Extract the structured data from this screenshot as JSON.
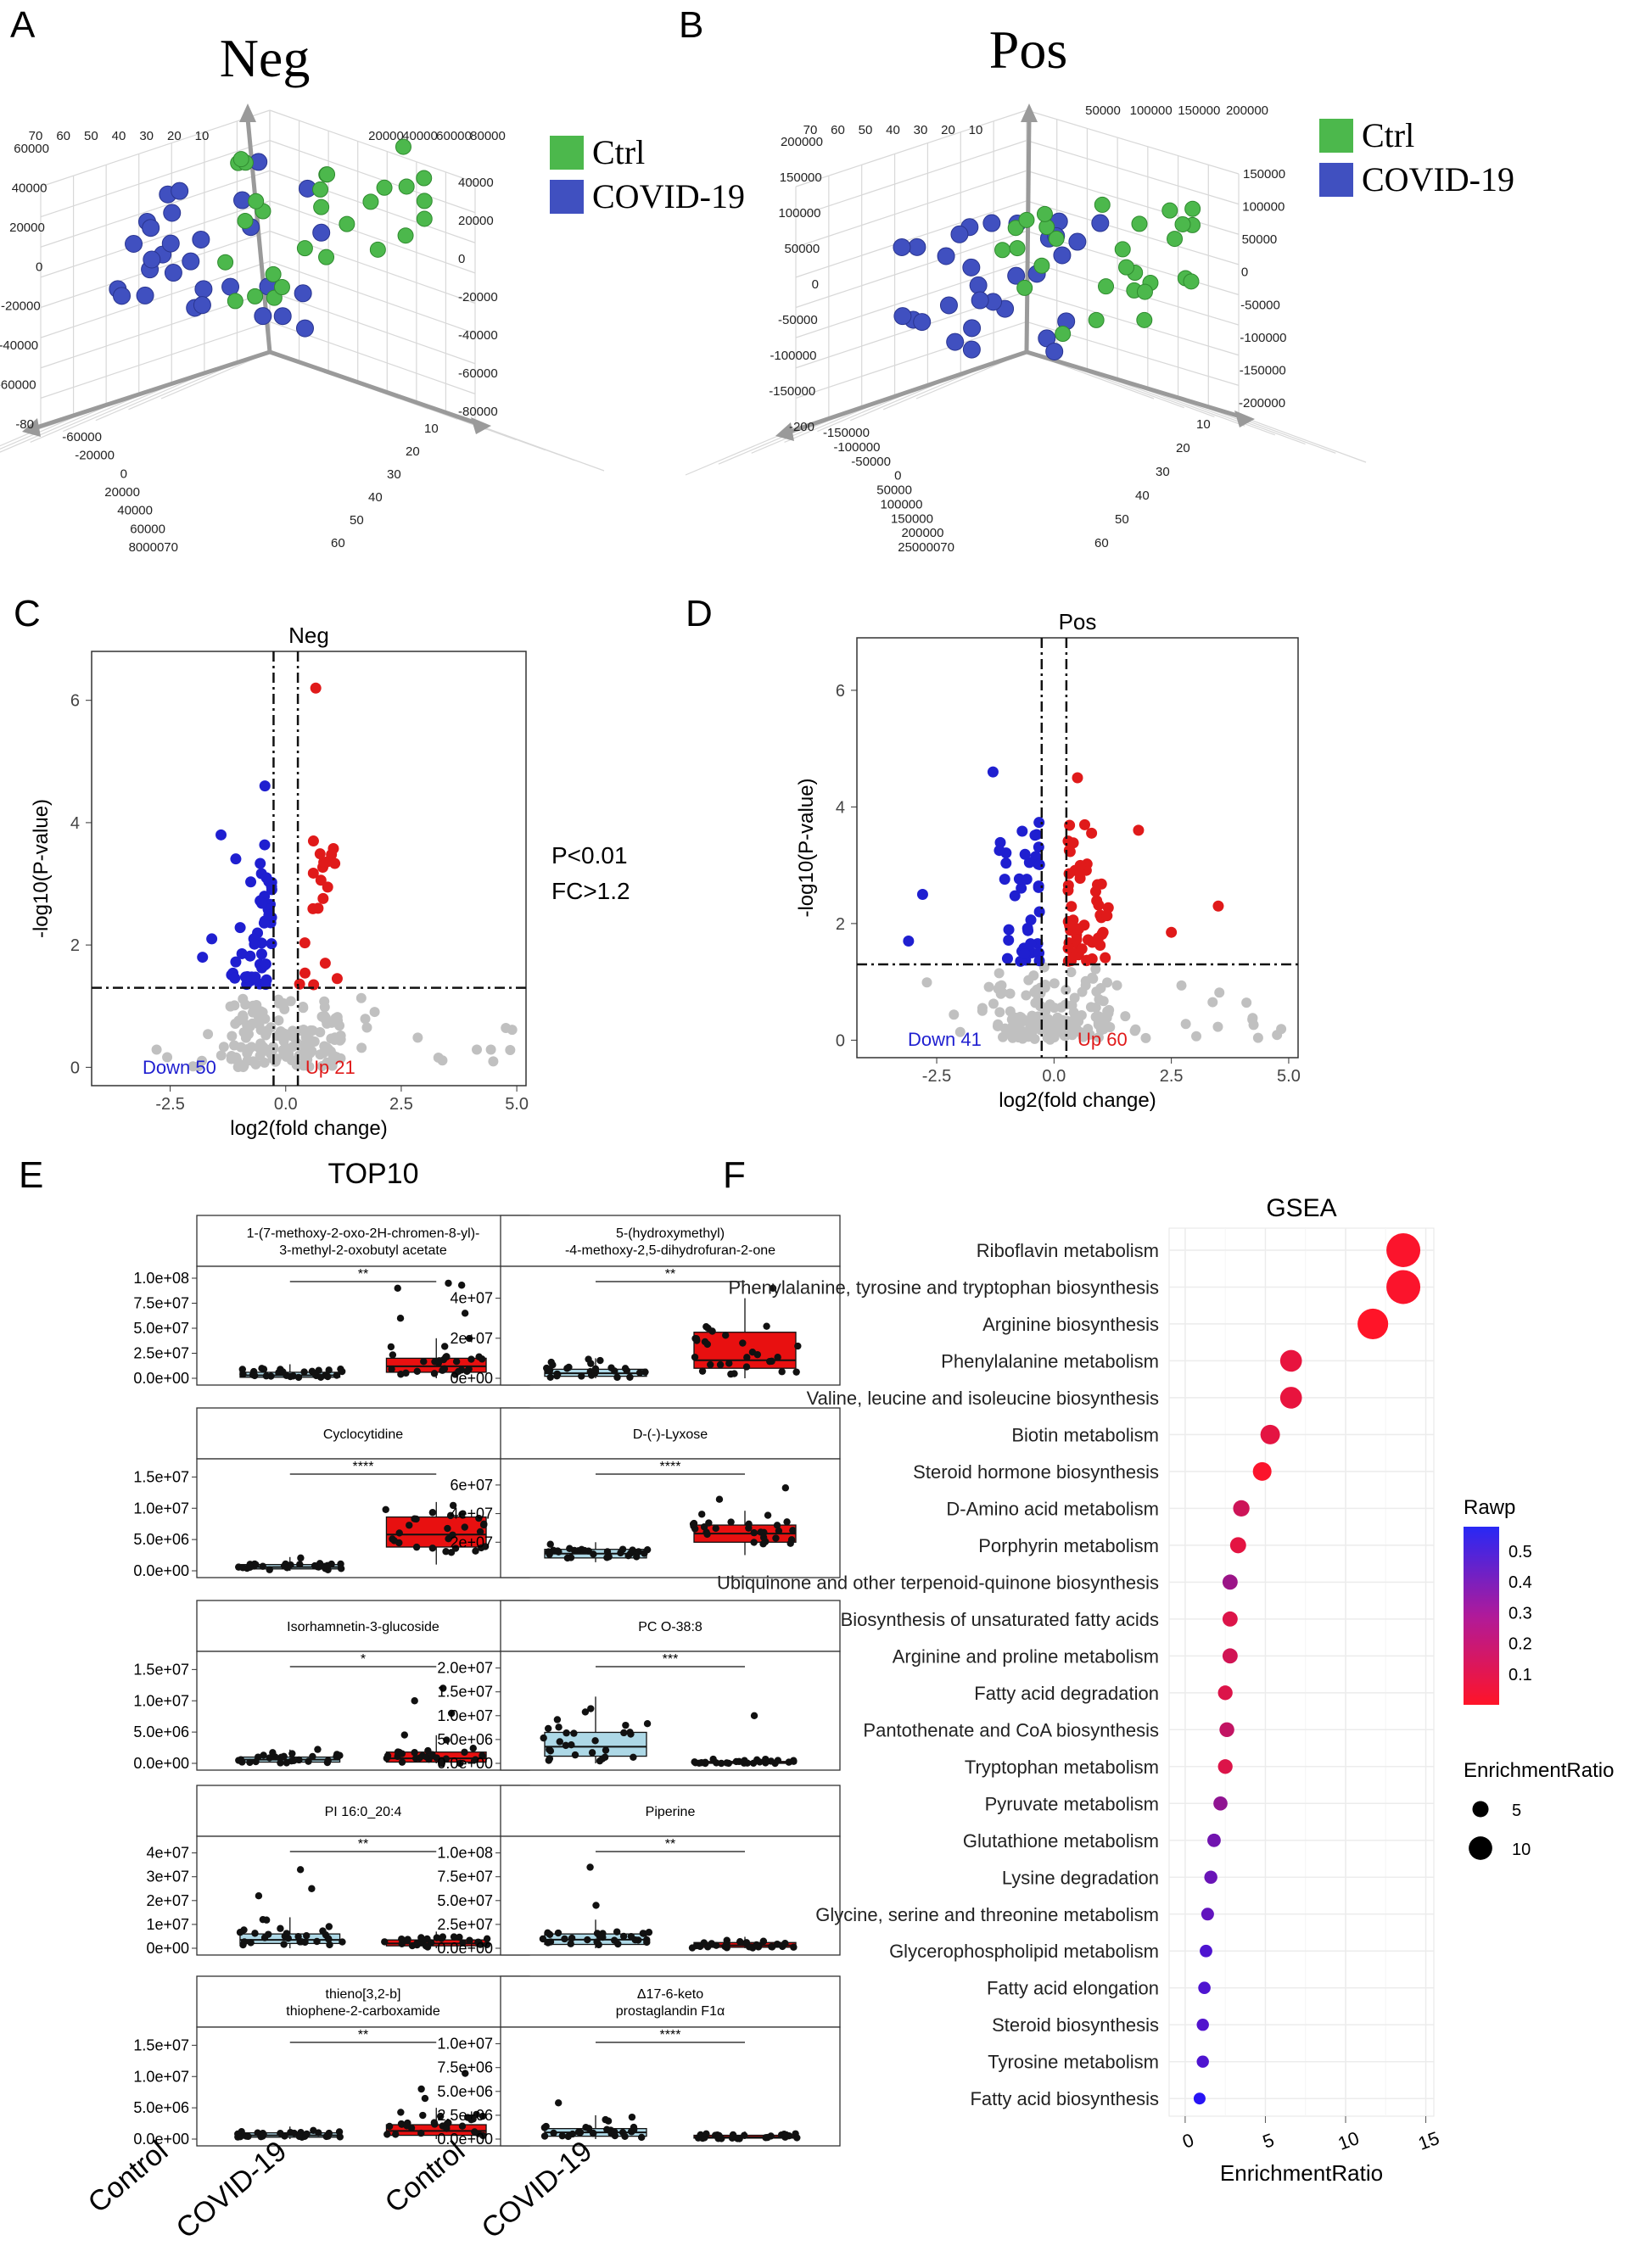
{
  "panel_letters": [
    "A",
    "B",
    "C",
    "D",
    "E",
    "F"
  ],
  "chart_data": [
    {
      "id": "A",
      "type": "scatter",
      "subtype": "3d-pca",
      "title": "Neg",
      "legend": [
        {
          "label": "Ctrl",
          "color": "#4cb84c"
        },
        {
          "label": "COVID-19",
          "color": "#4050c0"
        }
      ],
      "axis_ticks": {
        "top_left": [
          "70",
          "60",
          "50",
          "40",
          "30",
          "20",
          "10"
        ],
        "top_right": [
          "20000",
          "40000",
          "60000",
          "80000"
        ],
        "left": [
          "60000",
          "40000",
          "20000",
          "0",
          "-20000",
          "-40000",
          "-60000",
          "-80"
        ],
        "right": [
          "40000",
          "20000",
          "0",
          "-20000",
          "-40000",
          "-60000",
          "-80000"
        ],
        "bottom_left": [
          "-60000",
          "-20000",
          "0",
          "20000",
          "40000",
          "60000",
          "8000070"
        ],
        "bottom_right": [
          "10",
          "20",
          "30",
          "40",
          "50",
          "60"
        ]
      }
    },
    {
      "id": "B",
      "type": "scatter",
      "subtype": "3d-pca",
      "title": "Pos",
      "legend": [
        {
          "label": "Ctrl",
          "color": "#4cb84c"
        },
        {
          "label": "COVID-19",
          "color": "#4050c0"
        }
      ],
      "axis_ticks": {
        "top_left": [
          "70",
          "60",
          "50",
          "40",
          "30",
          "20",
          "10"
        ],
        "top_right": [
          "50000",
          "100000",
          "150000",
          "200000"
        ],
        "left": [
          "200000",
          "150000",
          "100000",
          "50000",
          "0",
          "-50000",
          "-100000",
          "-150000",
          "-200"
        ],
        "right": [
          "150000",
          "100000",
          "50000",
          "0",
          "-50000",
          "-100000",
          "-150000",
          "-200000"
        ],
        "bottom_left": [
          "-150000",
          "-100000",
          "-50000",
          "0",
          "50000",
          "100000",
          "150000",
          "200000",
          "25000070"
        ],
        "bottom_right": [
          "10",
          "20",
          "30",
          "40",
          "50",
          "60"
        ]
      }
    },
    {
      "id": "C",
      "type": "scatter",
      "subtype": "volcano",
      "title": "Neg",
      "xlabel": "log2(fold change)",
      "ylabel": "-log10(P-value)",
      "xlim": [
        -4.2,
        5.2
      ],
      "ylim": [
        -0.3,
        6.8
      ],
      "xticks": [
        "-2.5",
        "0.0",
        "2.5",
        "5.0"
      ],
      "yticks": [
        "0",
        "2",
        "4",
        "6"
      ],
      "thresholds": {
        "x": [
          -0.263,
          0.263
        ],
        "y": 1.3
      },
      "label_down": "Down 50",
      "label_up": "Up 21",
      "annotation": [
        "P<0.01",
        "FC>1.2"
      ],
      "down_count": 50,
      "up_count": 21,
      "seed": 7,
      "up_extremes": [
        [
          0.65,
          6.2
        ],
        [
          0.6,
          3.7
        ],
        [
          0.7,
          2.6
        ]
      ],
      "down_extremes": [
        [
          -0.45,
          4.6
        ],
        [
          -1.4,
          3.8
        ],
        [
          -1.6,
          2.1
        ],
        [
          -1.8,
          1.8
        ]
      ]
    },
    {
      "id": "D",
      "type": "scatter",
      "subtype": "volcano",
      "title": "Pos",
      "xlabel": "log2(fold change)",
      "ylabel": "-log10(P-value)",
      "xlim": [
        -4.2,
        5.2
      ],
      "ylim": [
        -0.3,
        6.9
      ],
      "xticks": [
        "-2.5",
        "0.0",
        "2.5",
        "5.0"
      ],
      "yticks": [
        "0",
        "2",
        "4",
        "6"
      ],
      "thresholds": {
        "x": [
          -0.263,
          0.263
        ],
        "y": 1.3
      },
      "label_down": "Down 41",
      "label_up": "Up 60",
      "down_count": 41,
      "up_count": 60,
      "seed": 19,
      "up_extremes": [
        [
          3.5,
          2.3
        ],
        [
          2.5,
          1.85
        ],
        [
          1.8,
          3.6
        ],
        [
          0.5,
          4.5
        ]
      ],
      "down_extremes": [
        [
          -1.3,
          4.6
        ],
        [
          -2.8,
          2.5
        ],
        [
          -3.1,
          1.7
        ]
      ]
    },
    {
      "id": "E",
      "type": "boxplot",
      "title": "TOP10",
      "groups": [
        "Control",
        "COVID-19"
      ],
      "panels": [
        {
          "name": "1-(7-methoxy-2-oxo-2H-chromen-8-yl)-\n3-methyl-2-oxobutyl acetate",
          "sig": "**",
          "yticks": [
            "1.0e+08",
            "7.5e+07",
            "5.0e+07",
            "2.5e+07",
            "0.0e+00"
          ],
          "ymax": 100000000.0,
          "control": {
            "q1": 1000000.0,
            "med": 3000000.0,
            "q3": 6000000.0,
            "lo": 0,
            "hi": 14000000.0
          },
          "covid": {
            "q1": 6000000.0,
            "med": 12000000.0,
            "q3": 20000000.0,
            "lo": 0,
            "hi": 40000000.0,
            "out": [
              95000000.0,
              93000000.0,
              90000000.0,
              65000000.0,
              60000000.0
            ]
          },
          "up": true
        },
        {
          "name": "5-(hydroxymethyl)\n-4-methoxy-2,5-dihydrofuran-2-one",
          "sig": "**",
          "yticks": [
            "4e+07",
            "2e+07",
            "0e+00"
          ],
          "ymax": 50000000.0,
          "control": {
            "q1": 1000000.0,
            "med": 2500000.0,
            "q3": 4500000.0,
            "lo": 0,
            "hi": 10000000.0
          },
          "covid": {
            "q1": 5000000.0,
            "med": 9000000.0,
            "q3": 23000000.0,
            "lo": 0,
            "hi": 40000000.0,
            "out": [
              45000000.0
            ]
          },
          "up": true
        },
        {
          "name": "Cyclocytidine",
          "sig": "****",
          "yticks": [
            "1.5e+07",
            "1.0e+07",
            "5.0e+06",
            "0.0e+00"
          ],
          "ymax": 16000000.0,
          "control": {
            "q1": 300000.0,
            "med": 600000.0,
            "q3": 1000000.0,
            "lo": 0,
            "hi": 2200000.0
          },
          "covid": {
            "q1": 3800000.0,
            "med": 5800000.0,
            "q3": 8600000.0,
            "lo": 1000000.0,
            "hi": 11000000.0,
            "out": []
          },
          "up": true
        },
        {
          "name": "D-(-)-Lyxose",
          "sig": "****",
          "yticks": [
            "6e+07",
            "4e+07",
            "2e+07"
          ],
          "ymax": 70000000.0,
          "control": {
            "q1": 9000000.0,
            "med": 12000000.0,
            "q3": 15000000.0,
            "lo": 6000000.0,
            "hi": 20000000.0
          },
          "covid": {
            "q1": 20000000.0,
            "med": 26000000.0,
            "q3": 32000000.0,
            "lo": 11000000.0,
            "hi": 42000000.0,
            "out": [
              58000000.0,
              50000000.0
            ]
          },
          "up": true
        },
        {
          "name": "Isorhamnetin-3-glucoside",
          "sig": "*",
          "yticks": [
            "1.5e+07",
            "1.0e+07",
            "5.0e+06",
            "0.0e+00"
          ],
          "ymax": 16000000.0,
          "control": {
            "q1": 200000.0,
            "med": 600000.0,
            "q3": 1000000.0,
            "lo": 0,
            "hi": 2200000.0
          },
          "covid": {
            "q1": 200000.0,
            "med": 800000.0,
            "q3": 1800000.0,
            "lo": 0,
            "hi": 4500000.0,
            "out": [
              12000000.0,
              10000000.0,
              8000000.0
            ]
          },
          "up": true
        },
        {
          "name": "PC O-38:8",
          "sig": "***",
          "yticks": [
            "2.0e+07",
            "1.5e+07",
            "1.0e+07",
            "5.0e+06",
            "0.0e+00"
          ],
          "ymax": 21000000.0,
          "control": {
            "q1": 1500000.0,
            "med": 3500000.0,
            "q3": 6500000.0,
            "lo": 0,
            "hi": 14000000.0
          },
          "covid": {
            "q1": 0,
            "med": 100000.0,
            "q3": 400000.0,
            "lo": 0,
            "hi": 1000000.0,
            "out": [
              10000000.0
            ]
          },
          "up": false
        },
        {
          "name": "PI 16:0_20:4",
          "sig": "**",
          "yticks": [
            "4e+07",
            "3e+07",
            "2e+07",
            "1e+07",
            "0e+00"
          ],
          "ymax": 42000000.0,
          "control": {
            "q1": 2000000.0,
            "med": 3500000.0,
            "q3": 6000000.0,
            "lo": 0,
            "hi": 13000000.0,
            "out": [
              33000000.0,
              25000000.0,
              22000000.0
            ]
          },
          "covid": {
            "q1": 1000000.0,
            "med": 2000000.0,
            "q3": 3500000.0,
            "lo": 0,
            "hi": 7000000.0,
            "out": []
          },
          "up": false
        },
        {
          "name": "Piperine",
          "sig": "**",
          "yticks": [
            "1.0e+08",
            "7.5e+07",
            "5.0e+07",
            "2.5e+07",
            "0.0e+00"
          ],
          "ymax": 105000000.0,
          "control": {
            "q1": 4000000.0,
            "med": 9000000.0,
            "q3": 15000000.0,
            "lo": 0,
            "hi": 30000000.0,
            "out": [
              85000000.0,
              45000000.0
            ]
          },
          "covid": {
            "q1": 1000000.0,
            "med": 3000000.0,
            "q3": 6000000.0,
            "lo": 0,
            "hi": 12000000.0,
            "out": []
          },
          "up": false
        },
        {
          "name": "thieno[3,2-b]\nthiophene-2-carboxamide",
          "sig": "**",
          "yticks": [
            "1.5e+07",
            "1.0e+07",
            "5.0e+06",
            "0.0e+00"
          ],
          "ymax": 16000000.0,
          "control": {
            "q1": 300000.0,
            "med": 600000.0,
            "q3": 1000000.0,
            "lo": 0,
            "hi": 2000000.0
          },
          "covid": {
            "q1": 600000.0,
            "med": 1300000.0,
            "q3": 2300000.0,
            "lo": 0,
            "hi": 5000000.0,
            "out": [
              10500000.0,
              8000000.0,
              6500000.0
            ]
          },
          "up": true
        },
        {
          "name": "Δ17-6-keto\nprostaglandin F1α",
          "sig": "****",
          "yticks": [
            "1.0e+07",
            "7.5e+06",
            "5.0e+06",
            "2.5e+06",
            "0.0e+00"
          ],
          "ymax": 10500000.0,
          "control": {
            "q1": 300000.0,
            "med": 700000.0,
            "q3": 1100000.0,
            "lo": 0,
            "hi": 2500000.0,
            "out": [
              3800000.0
            ]
          },
          "covid": {
            "q1": 100000.0,
            "med": 200000.0,
            "q3": 400000.0,
            "lo": 0,
            "hi": 800000.0,
            "out": []
          },
          "up": false
        }
      ]
    },
    {
      "id": "F",
      "type": "scatter",
      "subtype": "dot-plot",
      "title": "GSEA",
      "xlabel": "EnrichmentRatio",
      "xlim": [
        -1,
        15.5
      ],
      "xticks": [
        0,
        5,
        10,
        15
      ],
      "colorbar_label": "Rawp",
      "colorbar_ticks": [
        "0.5",
        "0.4",
        "0.3",
        "0.2",
        "0.1"
      ],
      "colorbar_range": [
        0.0,
        0.58
      ],
      "size_legend_label": "EnrichmentRatio",
      "size_legend_values": [
        5,
        10
      ],
      "pathways": [
        {
          "name": "Riboflavin metabolism",
          "ratio": 13.6,
          "rawp": 0.02
        },
        {
          "name": "Phenylalanine, tyrosine and tryptophan biosynthesis",
          "ratio": 13.6,
          "rawp": 0.02
        },
        {
          "name": "Arginine biosynthesis",
          "ratio": 11.7,
          "rawp": 0.01
        },
        {
          "name": "Phenylalanine metabolism",
          "ratio": 6.6,
          "rawp": 0.07
        },
        {
          "name": "Valine, leucine and isoleucine biosynthesis",
          "ratio": 6.6,
          "rawp": 0.07
        },
        {
          "name": "Biotin metabolism",
          "ratio": 5.3,
          "rawp": 0.08
        },
        {
          "name": "Steroid hormone biosynthesis",
          "ratio": 4.8,
          "rawp": 0.02
        },
        {
          "name": "D-Amino acid metabolism",
          "ratio": 3.5,
          "rawp": 0.14
        },
        {
          "name": "Porphyrin metabolism",
          "ratio": 3.3,
          "rawp": 0.08
        },
        {
          "name": "Ubiquinone and other terpenoid-quinone biosynthesis",
          "ratio": 2.8,
          "rawp": 0.27
        },
        {
          "name": "Biosynthesis of unsaturated fatty acids",
          "ratio": 2.8,
          "rawp": 0.1
        },
        {
          "name": "Arginine and proline metabolism",
          "ratio": 2.8,
          "rawp": 0.13
        },
        {
          "name": "Fatty acid degradation",
          "ratio": 2.5,
          "rawp": 0.1
        },
        {
          "name": "Pantothenate and CoA biosynthesis",
          "ratio": 2.6,
          "rawp": 0.17
        },
        {
          "name": "Tryptophan metabolism",
          "ratio": 2.5,
          "rawp": 0.1
        },
        {
          "name": "Pyruvate metabolism",
          "ratio": 2.2,
          "rawp": 0.3
        },
        {
          "name": "Glutathione metabolism",
          "ratio": 1.8,
          "rawp": 0.38
        },
        {
          "name": "Lysine degradation",
          "ratio": 1.6,
          "rawp": 0.4
        },
        {
          "name": "Glycine, serine and threonine metabolism",
          "ratio": 1.4,
          "rawp": 0.42
        },
        {
          "name": "Glycerophospholipid metabolism",
          "ratio": 1.3,
          "rawp": 0.47
        },
        {
          "name": "Fatty acid elongation",
          "ratio": 1.2,
          "rawp": 0.47
        },
        {
          "name": "Steroid biosynthesis",
          "ratio": 1.1,
          "rawp": 0.46
        },
        {
          "name": "Tyrosine metabolism",
          "ratio": 1.1,
          "rawp": 0.47
        },
        {
          "name": "Fatty acid biosynthesis",
          "ratio": 0.9,
          "rawp": 0.57
        }
      ]
    }
  ]
}
